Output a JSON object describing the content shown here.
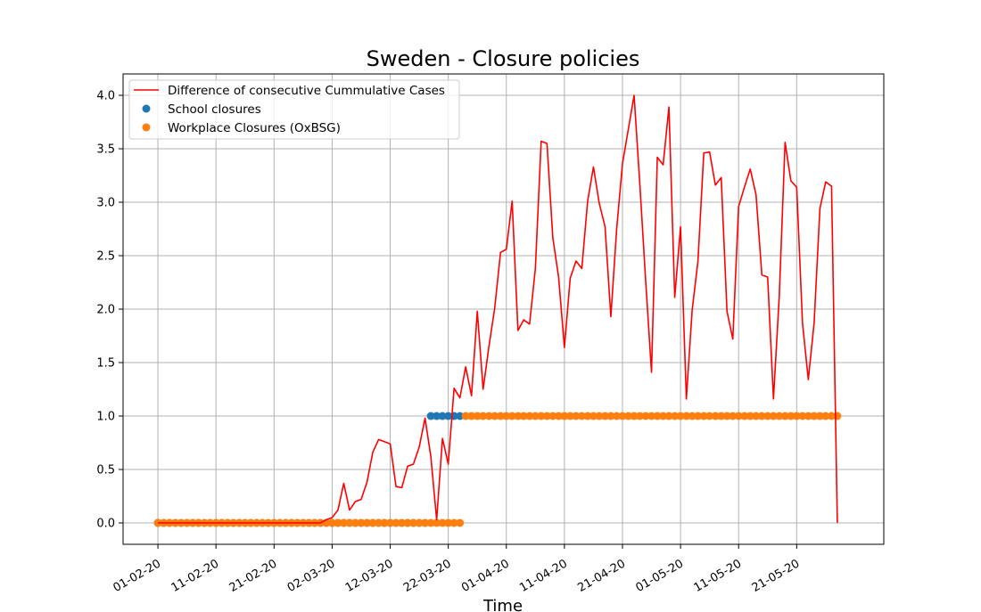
{
  "chart_data": {
    "type": "line",
    "title": "Sweden - Closure policies",
    "xlabel": "Time",
    "ylabel": "",
    "x_start": "2020-02-01",
    "x_end": "2020-05-29",
    "xlim": [
      "2020-01-26",
      "2020-06-05"
    ],
    "ylim": [
      -0.2,
      4.2
    ],
    "grid": true,
    "legend_position": "top-left",
    "x_ticks": [
      "2020-02-01",
      "2020-02-11",
      "2020-02-21",
      "2020-03-02",
      "2020-03-12",
      "2020-03-22",
      "2020-04-01",
      "2020-04-11",
      "2020-04-21",
      "2020-05-01",
      "2020-05-11",
      "2020-05-21"
    ],
    "x_tick_labels": [
      "01-02-20",
      "11-02-20",
      "21-02-20",
      "02-03-20",
      "12-03-20",
      "22-03-20",
      "01-04-20",
      "11-04-20",
      "21-04-20",
      "01-05-20",
      "11-05-20",
      "21-05-20"
    ],
    "y_ticks": [
      0.0,
      0.5,
      1.0,
      1.5,
      2.0,
      2.5,
      3.0,
      3.5,
      4.0
    ],
    "y_tick_labels": [
      "0.0",
      "0.5",
      "1.0",
      "1.5",
      "2.0",
      "2.5",
      "3.0",
      "3.5",
      "4.0"
    ],
    "series": [
      {
        "name": "Difference of consecutive Cummulative Cases",
        "kind": "line",
        "color": "#ff0000",
        "values": [
          0,
          0,
          0,
          0,
          0,
          0,
          0,
          0,
          0,
          0,
          0,
          0,
          0,
          0,
          0,
          0,
          0,
          0,
          0,
          0,
          0,
          0,
          0,
          0,
          0,
          0,
          0,
          0,
          0,
          0.03,
          0.05,
          0.12,
          0.37,
          0.12,
          0.2,
          0.22,
          0.38,
          0.66,
          0.78,
          0.76,
          0.74,
          0.34,
          0.33,
          0.53,
          0.55,
          0.71,
          0.98,
          0.62,
          0.03,
          0.79,
          0.55,
          1.26,
          1.17,
          1.46,
          1.19,
          1.98,
          1.25,
          1.65,
          2.01,
          2.53,
          2.56,
          3.01,
          1.8,
          1.9,
          1.86,
          2.38,
          3.57,
          3.55,
          2.67,
          2.3,
          1.64,
          2.29,
          2.45,
          2.38,
          3.01,
          3.33,
          2.99,
          2.77,
          1.93,
          2.75,
          3.36,
          3.68,
          4.0,
          3.16,
          2.26,
          1.41,
          3.42,
          3.35,
          3.89,
          2.11,
          2.77,
          1.16,
          1.99,
          2.45,
          3.46,
          3.47,
          3.16,
          3.23,
          1.98,
          1.72,
          2.96,
          3.14,
          3.31,
          3.07,
          2.32,
          2.3,
          1.16,
          2.12,
          3.56,
          3.2,
          3.14,
          1.87,
          1.34,
          1.87,
          2.94,
          3.19,
          3.15,
          0.0
        ]
      },
      {
        "name": "School closures",
        "kind": "markers",
        "color": "#1f77b4",
        "zero_days": 47,
        "one_days": 6,
        "values_note_only": ""
      },
      {
        "name": "Workplace Closures (OxBSG)",
        "kind": "markers",
        "color": "#ff7f0e",
        "zero_days": 53,
        "one_days": 65
      }
    ]
  }
}
